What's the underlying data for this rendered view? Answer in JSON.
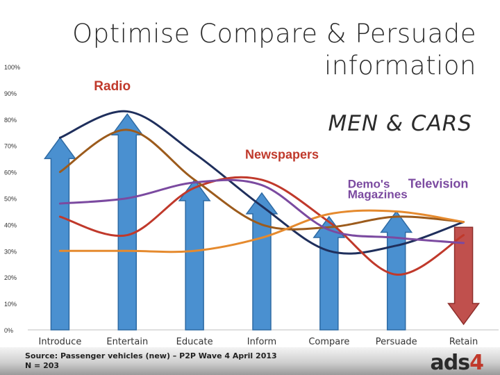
{
  "slide": {
    "title_line1": "Optimise Compare & Persuade",
    "title_line2": "information",
    "subtitle": "MEN & CARS",
    "source_line1": "Source: Passenger vehicles (new) – P2P Wave 4 April 2013",
    "source_line2": "N = 203",
    "logo_text": "ads",
    "logo_accent": "4"
  },
  "chart_data": {
    "type": "line",
    "categories": [
      "Introduce",
      "Entertain",
      "Educate",
      "Inform",
      "Compare",
      "Persuade",
      "Retain"
    ],
    "ylim": [
      0,
      100
    ],
    "yticks": [
      "0%",
      "10%",
      "20%",
      "30%",
      "40%",
      "50%",
      "60%",
      "70%",
      "80%",
      "90%",
      "100%"
    ],
    "grid": false,
    "series": [
      {
        "name": "Radio",
        "color": "#1f2f5c",
        "values": [
          73,
          83,
          67,
          47,
          30,
          32,
          41
        ]
      },
      {
        "name": "Newspapers",
        "color": "#c0392b",
        "values": [
          43,
          36,
          54,
          57,
          41,
          21,
          36
        ]
      },
      {
        "name": "Television",
        "color": "#9c5b1c",
        "values": [
          60,
          76,
          57,
          40,
          39,
          43,
          41
        ]
      },
      {
        "name": "Magazines",
        "color": "#e58a2e",
        "values": [
          30,
          30,
          30,
          35,
          44,
          45,
          41
        ]
      },
      {
        "name": "Demo's",
        "color": "#7b4aa0",
        "values": [
          48,
          50,
          56,
          55,
          38,
          35,
          33
        ]
      }
    ],
    "arrows": {
      "color_up": "#4a90d0",
      "color_down": "#c0504d",
      "items": [
        {
          "category": "Introduce",
          "direction": "up",
          "value": 73
        },
        {
          "category": "Entertain",
          "direction": "up",
          "value": 82
        },
        {
          "category": "Educate",
          "direction": "up",
          "value": 57
        },
        {
          "category": "Inform",
          "direction": "up",
          "value": 52
        },
        {
          "category": "Compare",
          "direction": "up",
          "value": 43
        },
        {
          "category": "Persuade",
          "direction": "up",
          "value": 45
        },
        {
          "category": "Retain",
          "direction": "down",
          "value": 39
        }
      ]
    },
    "labels": [
      {
        "text": "Radio",
        "color": "#c0392b",
        "category": "Entertain",
        "value": 91
      },
      {
        "text": "Newspapers",
        "color": "#c0392b",
        "category": "Inform",
        "value": 65
      },
      {
        "text": "Demo's",
        "color": "#7b4aa0",
        "category": "Persuade",
        "value": 54
      },
      {
        "text": "Television",
        "color": "#7b4aa0",
        "category": "Persuade",
        "value": 54
      },
      {
        "text": "Magazines",
        "color": "#7b4aa0",
        "category": "Persuade",
        "value": 50
      }
    ]
  }
}
